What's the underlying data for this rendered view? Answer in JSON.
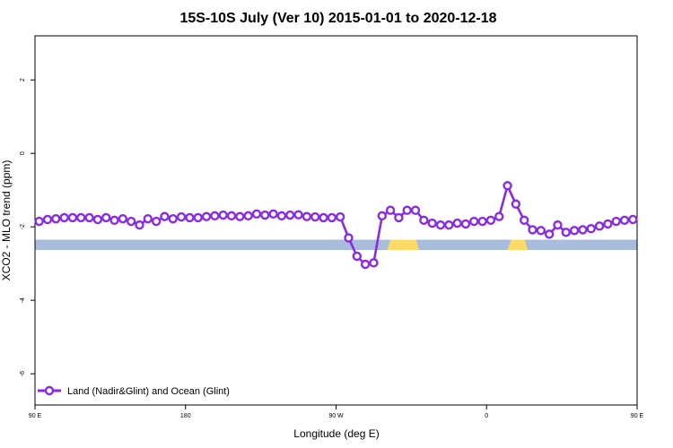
{
  "chart_data": {
    "type": "line",
    "title": "15S-10S July (Ver 10)   2015-01-01 to 2020-12-18",
    "xlabel": "Longitude (deg E)",
    "ylabel": "XCO2 - MLO trend (ppm)",
    "xlim": [
      90,
      450
    ],
    "ylim": [
      -6.85,
      3.2
    ],
    "x_ticks": [
      {
        "value": 90,
        "label": "90 E"
      },
      {
        "value": 180,
        "label": "180"
      },
      {
        "value": 270,
        "label": "90 W"
      },
      {
        "value": 360,
        "label": "0"
      },
      {
        "value": 450,
        "label": "90 E"
      }
    ],
    "y_ticks": [
      {
        "value": 2,
        "label": "2"
      },
      {
        "value": 0,
        "label": "0"
      },
      {
        "value": -2,
        "label": "-2"
      },
      {
        "value": -4,
        "label": "-4"
      },
      {
        "value": -6,
        "label": "-6"
      }
    ],
    "grid": false,
    "legend_position": "bottom-left",
    "series": [
      {
        "name": "Land (Nadir&Glint) and Ocean (Glint)",
        "color": "#8a2be2",
        "marker": "open-circle",
        "x": [
          92.5,
          97.5,
          102.5,
          107.5,
          112.5,
          117.5,
          122.5,
          127.5,
          132.5,
          137.5,
          142.5,
          147.5,
          152.5,
          157.5,
          162.5,
          167.5,
          172.5,
          177.5,
          182.5,
          187.5,
          192.5,
          197.5,
          202.5,
          207.5,
          212.5,
          217.5,
          222.5,
          227.5,
          232.5,
          237.5,
          242.5,
          247.5,
          252.5,
          257.5,
          262.5,
          267.5,
          272.5,
          277.5,
          282.5,
          287.5,
          292.5,
          297.5,
          302.5,
          307.5,
          312.5,
          317.5,
          322.5,
          327.5,
          332.5,
          337.5,
          342.5,
          347.5,
          352.5,
          357.5,
          362.5,
          367.5,
          372.5,
          377.5,
          382.5,
          387.5,
          392.5,
          397.5,
          402.5,
          407.5,
          412.5,
          417.5,
          422.5,
          427.5,
          432.5,
          437.5,
          442.5,
          447.5
        ],
        "y": [
          -1.85,
          -1.8,
          -1.78,
          -1.75,
          -1.75,
          -1.75,
          -1.75,
          -1.8,
          -1.75,
          -1.82,
          -1.78,
          -1.85,
          -1.95,
          -1.78,
          -1.85,
          -1.72,
          -1.78,
          -1.73,
          -1.75,
          -1.75,
          -1.72,
          -1.7,
          -1.68,
          -1.7,
          -1.72,
          -1.7,
          -1.65,
          -1.68,
          -1.65,
          -1.7,
          -1.68,
          -1.67,
          -1.72,
          -1.73,
          -1.75,
          -1.75,
          -1.73,
          -2.3,
          -2.8,
          -3.02,
          -2.98,
          -1.7,
          -1.55,
          -1.75,
          -1.55,
          -1.55,
          -1.82,
          -1.9,
          -1.95,
          -1.95,
          -1.9,
          -1.92,
          -1.85,
          -1.85,
          -1.82,
          -1.72,
          -0.88,
          -1.38,
          -1.82,
          -2.08,
          -2.1,
          -2.2,
          -1.95,
          -2.15,
          -2.1,
          -2.08,
          -2.05,
          -1.98,
          -1.92,
          -1.85,
          -1.82,
          -1.8
        ]
      }
    ],
    "surface_band": {
      "y_range": [
        -2.63,
        -2.35
      ],
      "ocean_color": "#a7bddb",
      "land_color": "#ffd966",
      "land_segments": [
        [
          300.5,
          319.5
        ],
        [
          372.5,
          384.5
        ]
      ]
    }
  }
}
